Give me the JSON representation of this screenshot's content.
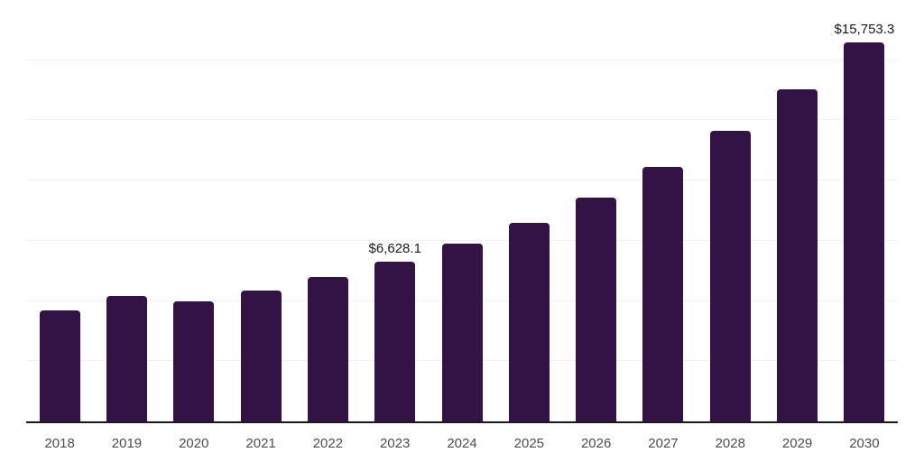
{
  "chart_data": {
    "type": "bar",
    "title": "",
    "xlabel": "",
    "ylabel": "",
    "categories": [
      "2018",
      "2019",
      "2020",
      "2021",
      "2022",
      "2023",
      "2024",
      "2025",
      "2026",
      "2027",
      "2028",
      "2029",
      "2030"
    ],
    "values": [
      4600,
      5200,
      4980,
      5430,
      5990,
      6628.1,
      7400,
      8230,
      9280,
      10580,
      12050,
      13780,
      15753.3
    ],
    "value_labels": [
      "",
      "",
      "",
      "",
      "",
      "$6,628.1",
      "",
      "",
      "",
      "",
      "",
      "",
      "$15,753.3"
    ],
    "ylim": [
      0,
      17500
    ],
    "gridline_step": 2500,
    "grid": "horizontal",
    "legend": "none",
    "colors": {
      "bar": "#331245",
      "axis_line": "#1a1a1a",
      "gridline": "#f2f2f2",
      "tick_label": "#4d4d4d",
      "value_label": "#1a1a1a",
      "background": "#ffffff"
    }
  }
}
